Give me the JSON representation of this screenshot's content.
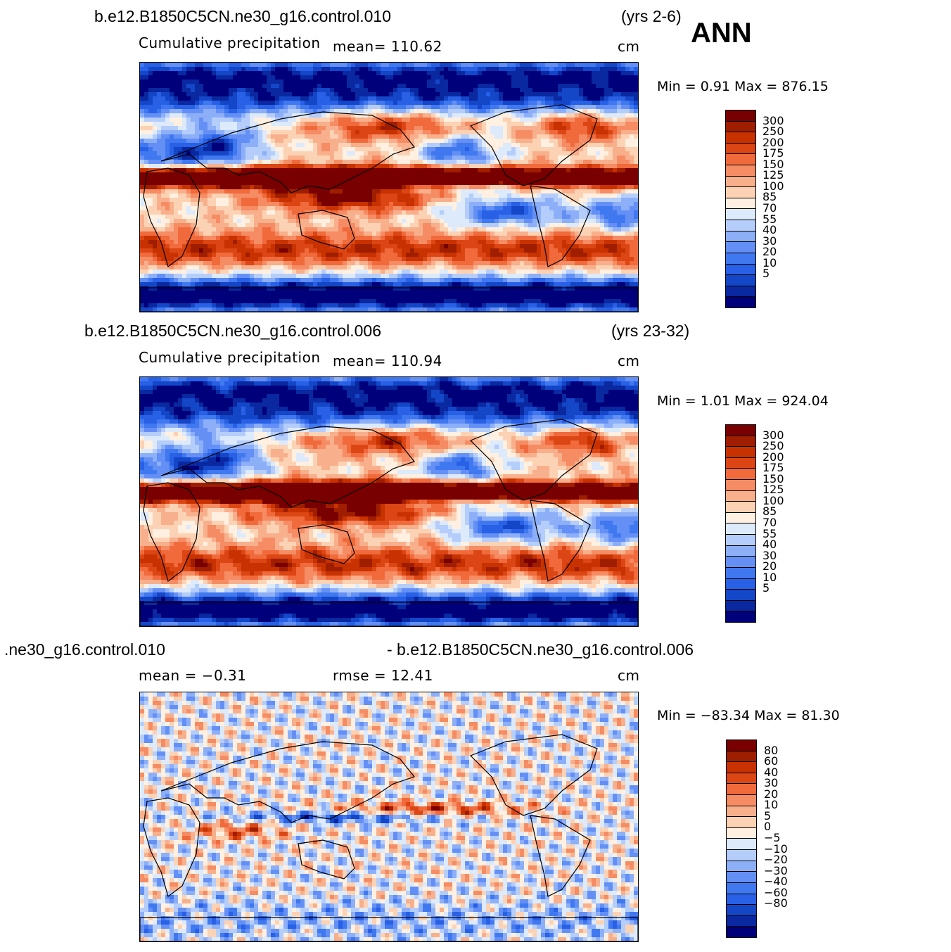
{
  "season": "ANN",
  "units": "cm",
  "palette_main": [
    "#00007a",
    "#0a28a0",
    "#1446c8",
    "#2860e6",
    "#4078f0",
    "#648ff5",
    "#8caff8",
    "#b4cdfa",
    "#dceafc",
    "#fff0e1",
    "#fcd2b4",
    "#f8af8c",
    "#f58c64",
    "#f06a3c",
    "#dc4614",
    "#c83200",
    "#a01e00",
    "#780000"
  ],
  "palette_diff": [
    "#00007a",
    "#0a28a0",
    "#1446c8",
    "#2860e6",
    "#4078f0",
    "#648ff5",
    "#8caff8",
    "#b4cdfa",
    "#dceafc",
    "#fff0e1",
    "#fcd2b4",
    "#f8af8c",
    "#f58c64",
    "#f06a3c",
    "#dc4614",
    "#c83200",
    "#a01e00",
    "#780000"
  ],
  "panels": [
    {
      "case": "b.e12.B1850C5CN.ne30_g16.control.010",
      "years": "(yrs 2-6)",
      "variable": "Cumulative precipitation",
      "mean_text": "mean=  110.62",
      "units": "cm",
      "min_text": "Min =    0.91  Max  =  876.15",
      "levels": [
        "300",
        "250",
        "200",
        "175",
        "150",
        "125",
        "100",
        "85",
        "70",
        "55",
        "40",
        "30",
        "20",
        "10",
        "5"
      ],
      "kind": "ctl"
    },
    {
      "case": "b.e12.B1850C5CN.ne30_g16.control.006",
      "years": "(yrs 23-32)",
      "variable": "Cumulative precipitation",
      "mean_text": "mean=  110.94",
      "units": "cm",
      "min_text": "Min =    1.01  Max  =  924.04",
      "levels": [
        "300",
        "250",
        "200",
        "175",
        "150",
        "125",
        "100",
        "85",
        "70",
        "55",
        "40",
        "30",
        "20",
        "10",
        "5"
      ],
      "kind": "ctl2"
    },
    {
      "case_left": ".ne30_g16.control.010",
      "case_right": "- b.e12.B1850C5CN.ne30_g16.control.006",
      "mean_text": "mean  =   −0.31",
      "rmse_text": "rmse  =    12.41",
      "units": "cm",
      "min_text": "Min  =  −83.34  Max  =    81.30",
      "levels": [
        "80",
        "60",
        "40",
        "30",
        "20",
        "10",
        "5",
        "0",
        "−5",
        "−10",
        "−20",
        "−30",
        "−40",
        "−60",
        "−80"
      ],
      "kind": "diff"
    }
  ]
}
